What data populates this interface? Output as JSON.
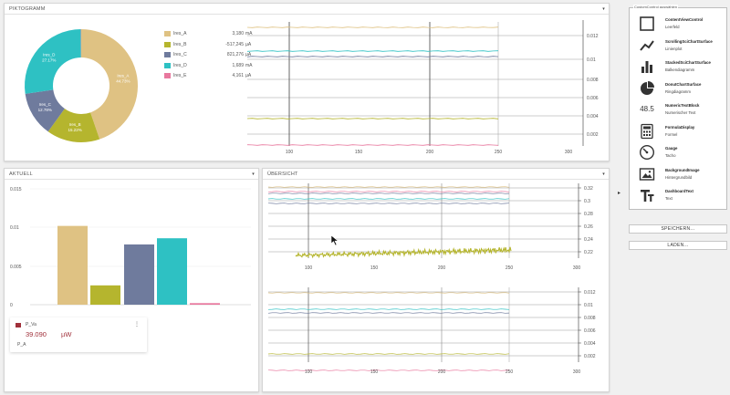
{
  "panels": {
    "top": {
      "title": "PIKTOGRAMM"
    },
    "actual": {
      "title": "AKTUELL"
    },
    "overview": {
      "title": "ÜBERSICHT"
    }
  },
  "pie": {
    "slices": [
      {
        "name": "Ires_A",
        "label": "Ires_A",
        "pct": "44.73%",
        "value": 44.73,
        "color": "#dfc283"
      },
      {
        "name": "Ires_B",
        "label": "Ires_B",
        "pct": "15.22%",
        "value": 15.22,
        "color": "#b5b52e"
      },
      {
        "name": "Ires_C",
        "label": "Ires_C",
        "pct": "12.78%",
        "value": 12.78,
        "color": "#6f7b9d"
      },
      {
        "name": "Ires_D",
        "label": "Ires_D",
        "pct": "27.17%",
        "value": 27.17,
        "color": "#2ec1c3"
      },
      {
        "name": "Ires_E",
        "label": "",
        "pct": "",
        "value": 0.1,
        "color": "#e8789e"
      }
    ]
  },
  "legend": [
    {
      "name": "Ires_A",
      "value": "3,180",
      "unit": "mA",
      "color": "#dfc283"
    },
    {
      "name": "Ires_B",
      "value": "-517,245",
      "unit": "µA",
      "color": "#b5b52e"
    },
    {
      "name": "Ires_C",
      "value": "821,276",
      "unit": "µA",
      "color": "#6f7b9d"
    },
    {
      "name": "Ires_D",
      "value": "1,689",
      "unit": "mA",
      "color": "#2ec1c3"
    },
    {
      "name": "Ires_E",
      "value": "4,161",
      "unit": "µA",
      "color": "#e8789e"
    }
  ],
  "top_chart": {
    "y_ticks": [
      "0.012",
      "0.01",
      "0.008",
      "0.006",
      "0.004",
      "0.002"
    ],
    "x_ticks": [
      "100",
      "150",
      "200",
      "250",
      "300"
    ],
    "series": [
      {
        "color": "#dfc283",
        "y": 0.0123
      },
      {
        "color": "#2ec1c3",
        "y": 0.0102
      },
      {
        "color": "#6f7b9d",
        "y": 0.0098
      },
      {
        "color": "#b5b52e",
        "y": 0.0028
      },
      {
        "color": "#e8789e",
        "y": 0.0001
      }
    ]
  },
  "bar_chart": {
    "y_ticks": [
      "0.015",
      "0.01",
      "0.005",
      "0"
    ],
    "values": [
      {
        "value": 0.0102,
        "color": "#dfc283"
      },
      {
        "value": 0.0025,
        "color": "#b5b52e"
      },
      {
        "value": 0.0078,
        "color": "#6f7b9d"
      },
      {
        "value": 0.0086,
        "color": "#2ec1c3"
      },
      {
        "value": 0.0002,
        "color": "#e8789e"
      }
    ]
  },
  "card": {
    "name": "P_Va",
    "value": "39.090",
    "unit": "µW",
    "subtitle": "P_A",
    "menu": "⋮",
    "color": "#a0303a"
  },
  "overview_top": {
    "y_ticks": [
      "0.32",
      "0.3",
      "0.28",
      "0.26",
      "0.24",
      "0.22"
    ],
    "x_ticks": [
      "100",
      "150",
      "200",
      "250",
      "300"
    ]
  },
  "overview_bottom": {
    "y_ticks": [
      "0.012",
      "0.01",
      "0.008",
      "0.006",
      "0.004",
      "0.002"
    ],
    "x_ticks": [
      "100",
      "150",
      "200",
      "250",
      "300"
    ]
  },
  "sidebar": {
    "group_title": "CustomControl auswählen",
    "controls": [
      {
        "icon": "square-outline-icon",
        "title": "ContentViewControl",
        "subtitle": "Leerfeld"
      },
      {
        "icon": "line-chart-icon",
        "title": "ScrollingSciChartSurface",
        "subtitle": "Linienplot"
      },
      {
        "icon": "bar-chart-icon",
        "title": "StackedSciChartSurface",
        "subtitle": "Balkendiagramm"
      },
      {
        "icon": "pie-chart-icon",
        "title": "DonutChartSurface",
        "subtitle": "Ringdiagramm"
      },
      {
        "icon": "numeric-icon",
        "title": "NumericTextBlock",
        "subtitle": "Numerischer Text",
        "glyph": "48.5"
      },
      {
        "icon": "calculator-icon",
        "title": "FormulaDisplay",
        "subtitle": "Formel"
      },
      {
        "icon": "gauge-icon",
        "title": "Gauge",
        "subtitle": "Tacho"
      },
      {
        "icon": "image-icon",
        "title": "BackgroundImage",
        "subtitle": "Hintergrundbild"
      },
      {
        "icon": "text-icon",
        "title": "DashboardText",
        "subtitle": "Text"
      }
    ],
    "buttons": {
      "save": "SPEICHERN...",
      "load": "LADEN..."
    },
    "collapse_glyph": "▸"
  },
  "caret": "▾"
}
